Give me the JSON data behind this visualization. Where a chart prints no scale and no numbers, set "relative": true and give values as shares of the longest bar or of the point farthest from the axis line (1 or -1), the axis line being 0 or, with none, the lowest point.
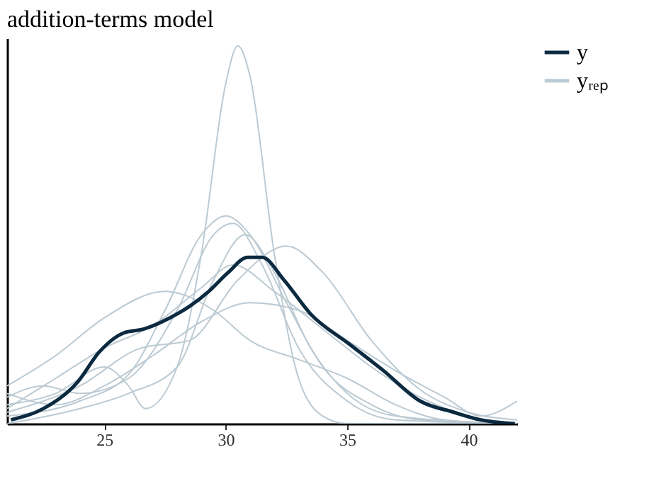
{
  "chart_data": {
    "type": "line",
    "title": "addition-terms model",
    "relative": true,
    "xlim": [
      21,
      42
    ],
    "xticks": [
      25,
      30,
      35,
      40
    ],
    "grid": false,
    "legend": "right",
    "marker": "none",
    "line_style": "solid",
    "series": [
      {
        "name": "y",
        "color": "#0b2a40",
        "x": [
          21.16,
          22.5,
          23.9,
          24.8,
          25.8,
          26.6,
          27.7,
          28.5,
          29.3,
          30.1,
          30.9,
          31.5,
          32.4,
          33.5,
          35.1,
          36.5,
          38.0,
          39.4,
          40.5,
          41.9
        ],
        "values": [
          0.01,
          0.04,
          0.11,
          0.19,
          0.24,
          0.25,
          0.28,
          0.31,
          0.35,
          0.4,
          0.44,
          0.44,
          0.38,
          0.29,
          0.21,
          0.14,
          0.06,
          0.03,
          0.01,
          0
        ]
      },
      {
        "name": "yᵣₑₚ",
        "color": "#bccad3",
        "x": [
          21,
          23,
          25,
          26,
          26.7,
          28,
          29,
          30,
          30.5,
          31,
          32,
          33,
          34,
          35,
          42
        ],
        "values": [
          0.05,
          0.08,
          0.15,
          0.1,
          0.04,
          0.15,
          0.45,
          0.9,
          1.0,
          0.92,
          0.45,
          0.12,
          0.02,
          0,
          0
        ]
      },
      {
        "color": "#bccad3",
        "x": [
          21,
          24,
          26,
          27.5,
          29,
          30,
          31,
          32.5,
          34,
          36,
          38,
          42
        ],
        "values": [
          0.02,
          0.06,
          0.13,
          0.3,
          0.5,
          0.55,
          0.5,
          0.32,
          0.15,
          0.05,
          0.01,
          0
        ]
      },
      {
        "color": "#bccad3",
        "x": [
          21,
          22.5,
          24,
          26,
          28,
          29.5,
          30.3,
          31.5,
          33,
          35,
          37,
          42
        ],
        "values": [
          0.07,
          0.1,
          0.08,
          0.12,
          0.3,
          0.5,
          0.53,
          0.42,
          0.2,
          0.06,
          0.01,
          0
        ]
      },
      {
        "color": "#bccad3",
        "x": [
          21,
          24,
          26.5,
          28.5,
          30.5,
          32.5,
          34,
          36,
          38,
          40,
          42
        ],
        "values": [
          0.03,
          0.1,
          0.2,
          0.22,
          0.38,
          0.47,
          0.4,
          0.22,
          0.09,
          0.03,
          0.01
        ]
      },
      {
        "color": "#bccad3",
        "x": [
          21,
          23,
          25,
          27.5,
          29.5,
          31,
          33,
          35,
          37,
          39,
          42
        ],
        "values": [
          0.1,
          0.18,
          0.28,
          0.35,
          0.3,
          0.22,
          0.17,
          0.12,
          0.05,
          0.01,
          0
        ]
      },
      {
        "color": "#bccad3",
        "x": [
          21,
          23,
          25,
          27,
          29,
          30.3,
          32,
          34,
          36,
          38,
          40,
          42
        ],
        "values": [
          0.04,
          0.12,
          0.2,
          0.26,
          0.36,
          0.42,
          0.35,
          0.25,
          0.15,
          0.07,
          0.02,
          0
        ]
      },
      {
        "color": "#bccad3",
        "x": [
          21,
          23,
          25,
          27,
          29,
          31,
          33,
          35,
          37,
          39,
          40.5,
          42
        ],
        "values": [
          0.08,
          0.05,
          0.1,
          0.18,
          0.27,
          0.32,
          0.3,
          0.22,
          0.14,
          0.07,
          0.02,
          0.06
        ]
      },
      {
        "color": "#bccad3",
        "x": [
          21,
          24,
          26,
          28,
          29.5,
          30.8,
          32,
          33.5,
          35,
          37,
          42
        ],
        "values": [
          0,
          0.04,
          0.08,
          0.15,
          0.38,
          0.5,
          0.4,
          0.2,
          0.08,
          0.02,
          0
        ]
      }
    ]
  }
}
